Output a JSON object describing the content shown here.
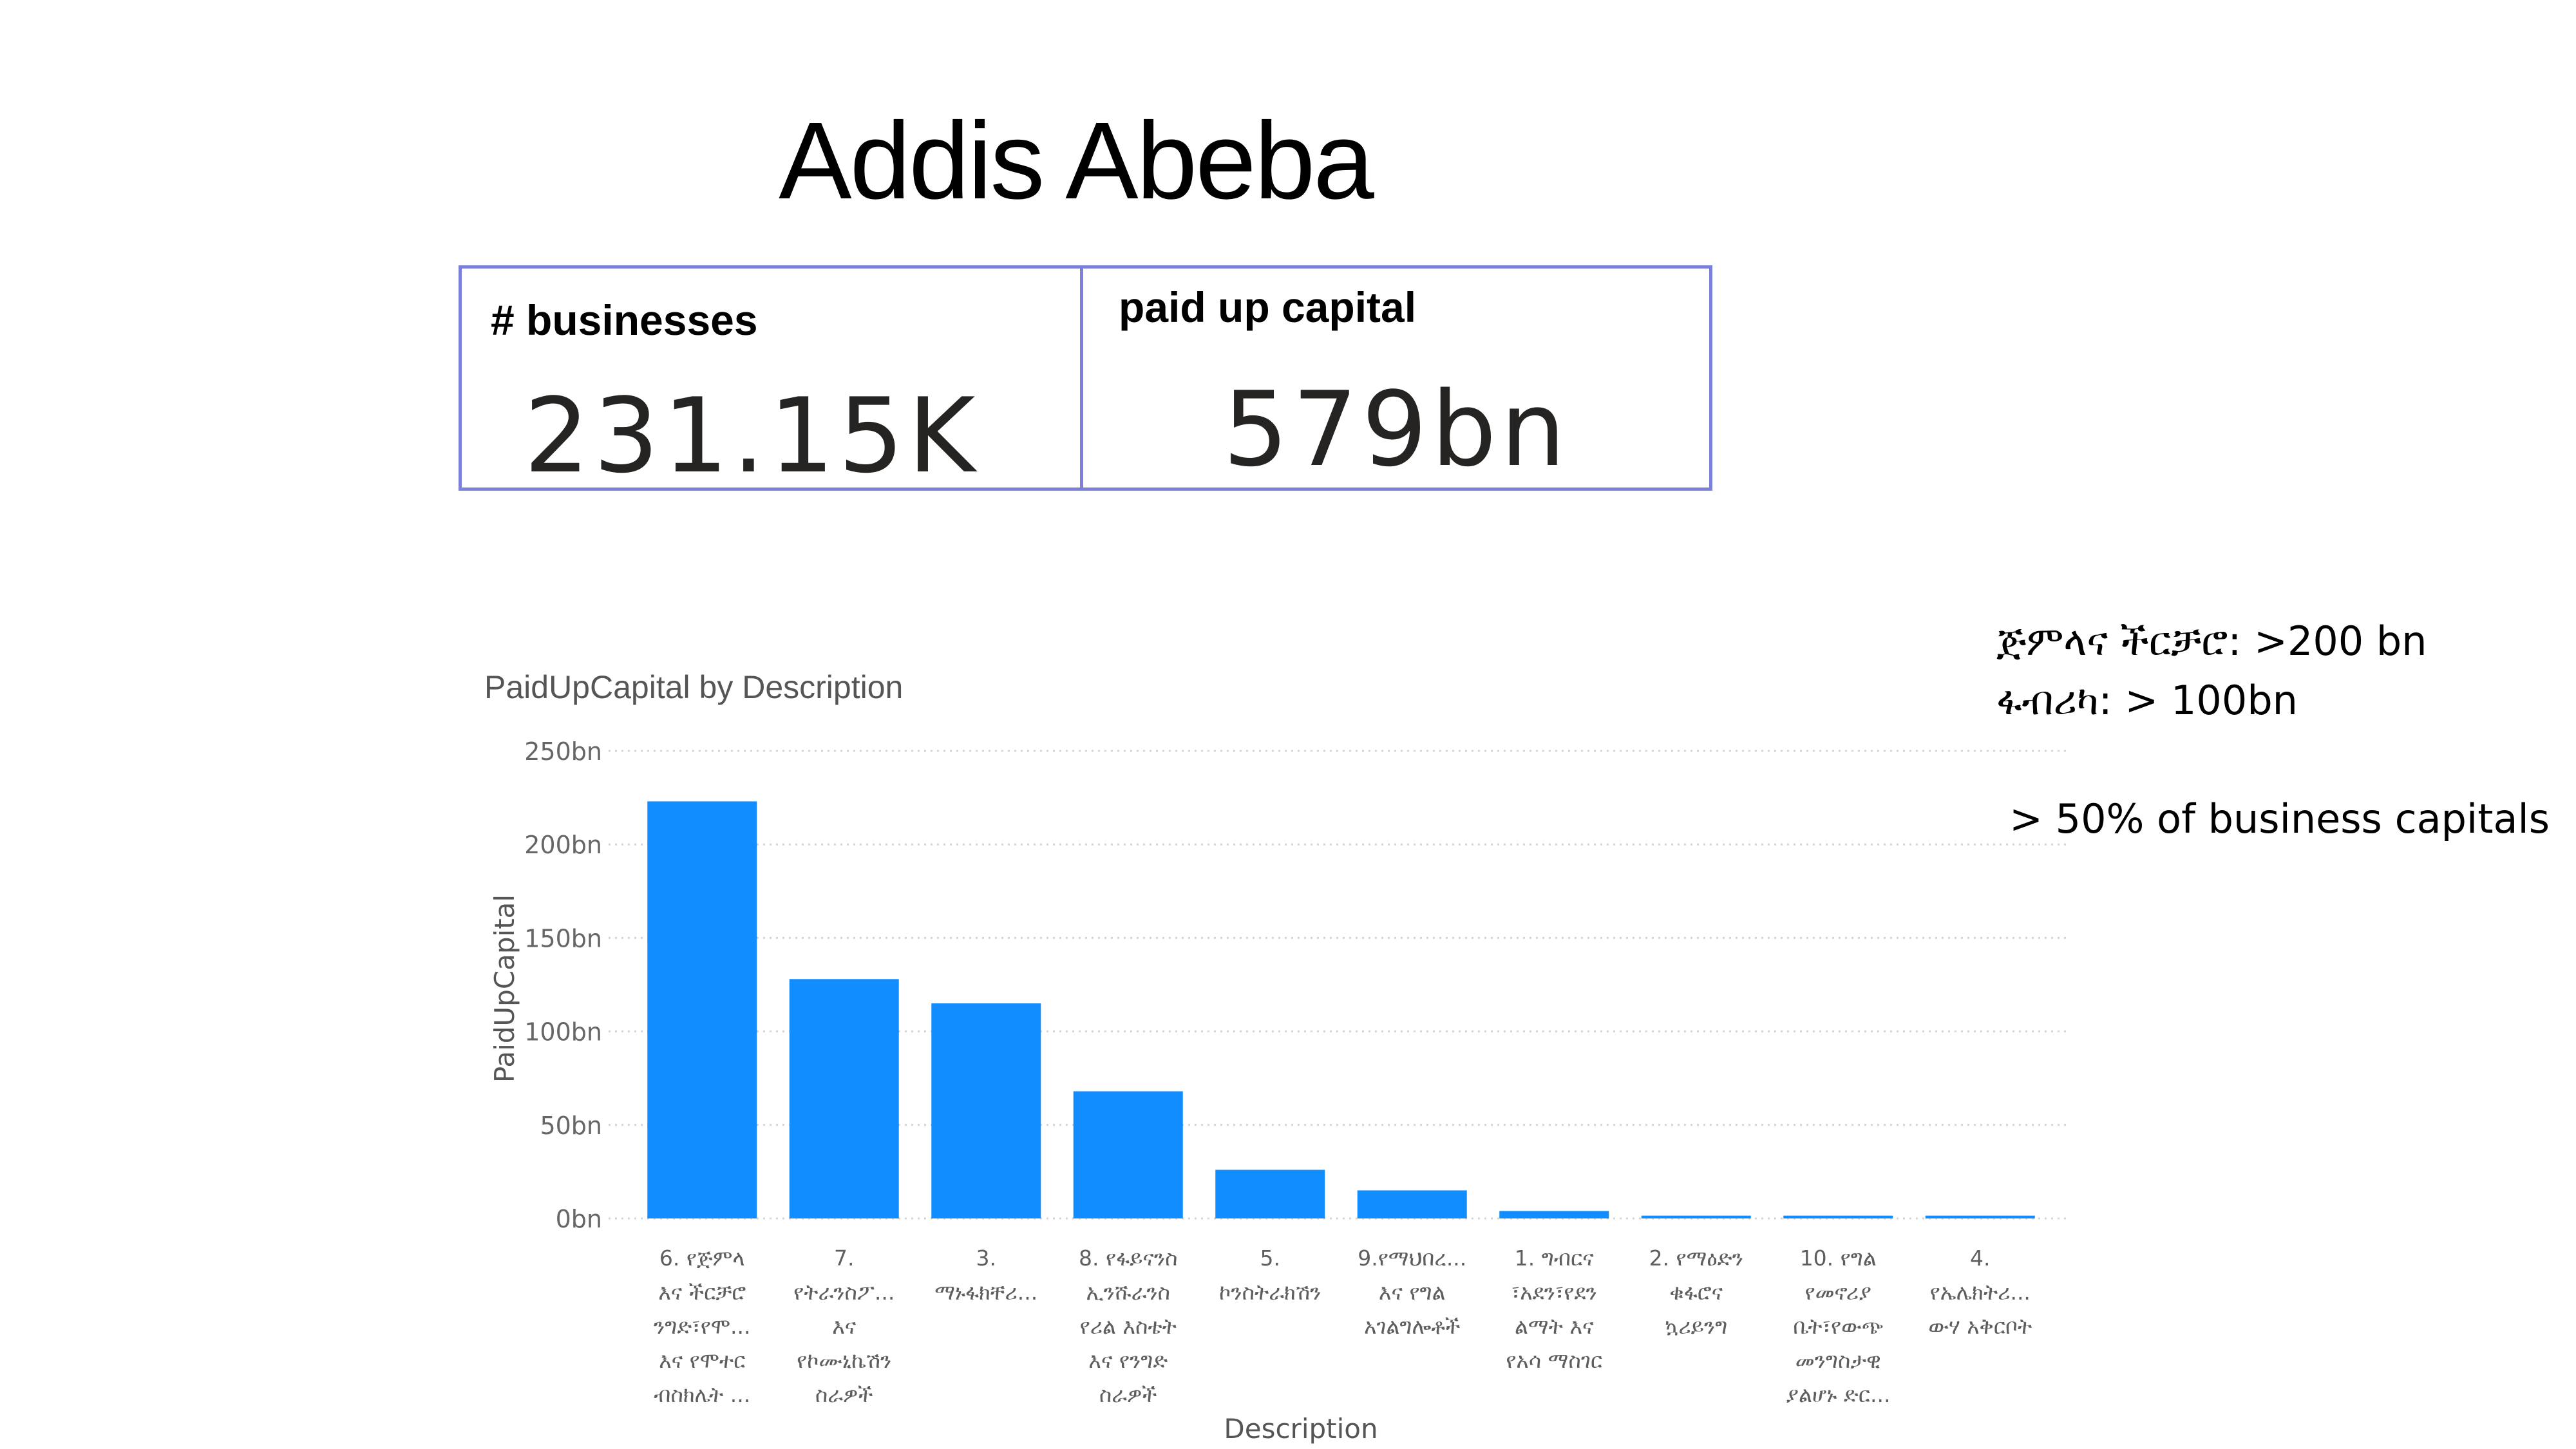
{
  "slide": {
    "title": "Addis Abeba"
  },
  "kpis": {
    "businesses": {
      "label": "# businesses",
      "value": "231.15K"
    },
    "capital": {
      "label": "paid up capital",
      "value": "579bn"
    }
  },
  "chart_data": {
    "type": "bar",
    "title": "PaidUpCapital by Description",
    "xlabel": "Description",
    "ylabel": "PaidUpCapital",
    "ylim": [
      0,
      250
    ],
    "y_unit": "bn",
    "y_ticks": [
      "0bn",
      "50bn",
      "100bn",
      "150bn",
      "200bn",
      "250bn"
    ],
    "grid": true,
    "categories": [
      [
        "6. የጅምላ",
        "እና ችርቻሮ",
        "ንግድ፣የሞ...",
        "እና የሞተር",
        "ብስክሌት ..."
      ],
      [
        "7.",
        "የትራንስፖ...",
        "እና",
        "የኮሙኒኬሽን",
        "ስራዎች"
      ],
      [
        "3.",
        "ማኑፋክቸሪ..."
      ],
      [
        "8. የፋይናንስ",
        "ኢንሹራንስ",
        "የሪል እስቴት",
        "እና የንግድ",
        "ስራዎች"
      ],
      [
        "5.",
        "ኮንስትራክሽን"
      ],
      [
        "9.የማህበረ...",
        "እና የግል",
        "አገልግሎቶች"
      ],
      [
        "1. ግብርና",
        "፣አደን፣የደን",
        "ልማት እና",
        "የአሳ ማስገር"
      ],
      [
        "2. የማዕድን",
        "ቁፋሮና",
        "ኳሪይንግ"
      ],
      [
        "10. የግል",
        "የመኖሪያ",
        "ቤት፣የውጭ",
        "መንግስታዊ",
        "ያልሆኑ ድር..."
      ],
      [
        "4.",
        "የኤሌክትሪ...",
        "ውሃ አቅርቦት"
      ]
    ],
    "values": [
      223,
      128,
      115,
      68,
      26,
      15,
      4,
      1.5,
      1.5,
      1.5
    ],
    "bar_color": "#118dff"
  },
  "notes": {
    "line1": "ጅምላና ችርቻሮ: >200 bn",
    "line2": "ፋብሪካ: > 100bn",
    "line3": "> 50% of business capitals"
  }
}
